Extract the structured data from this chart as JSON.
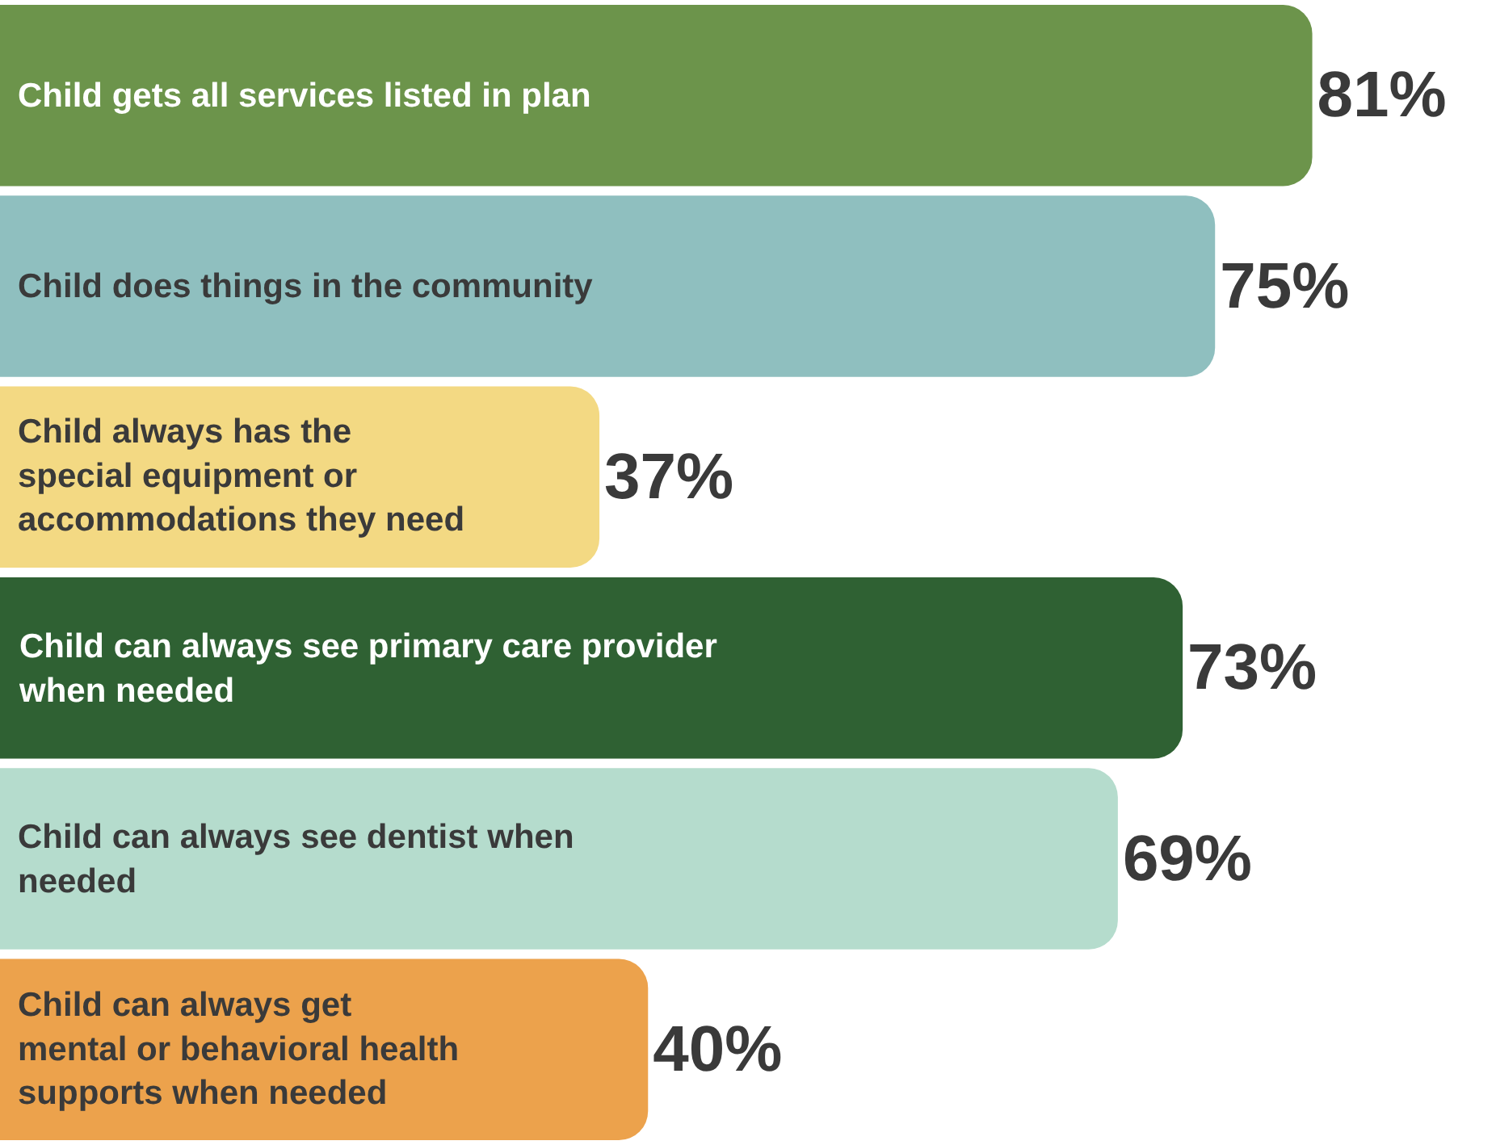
{
  "chart_data": {
    "type": "bar",
    "orientation": "horizontal",
    "categories": [
      "Child gets all services listed in plan",
      "Child does things in the community",
      "Child always has the\nspecial equipment or\naccommodations they need",
      "Child can always see primary care provider\nwhen needed",
      "Child can always see dentist when\nneeded",
      "Child can always get\nmental or behavioral health\nsupports when needed"
    ],
    "values": [
      81,
      75,
      37,
      73,
      69,
      40
    ],
    "value_labels": [
      "81%",
      "75%",
      "37%",
      "73%",
      "69%",
      "40%"
    ],
    "colors": [
      "#6c944b",
      "#8fbfbf",
      "#f3d983",
      "#2f6133",
      "#b5dccd",
      "#eca24c"
    ]
  }
}
